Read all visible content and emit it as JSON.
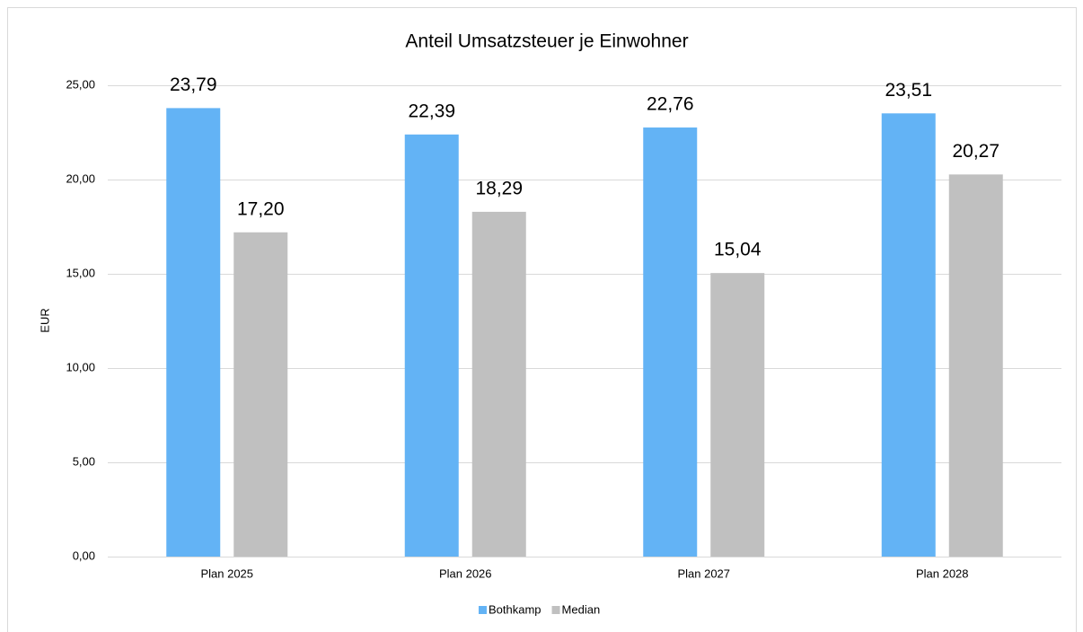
{
  "chart_data": {
    "type": "bar",
    "title": "Anteil Umsatzsteuer je Einwohner",
    "y_label": "EUR",
    "categories": [
      "Plan 2025",
      "Plan 2026",
      "Plan 2027",
      "Plan 2028"
    ],
    "series": [
      {
        "name": "Bothkamp",
        "color": "#63b3f5",
        "values": [
          23.79,
          22.39,
          22.76,
          23.51
        ],
        "value_labels": [
          "23,79",
          "22,39",
          "22,76",
          "23,51"
        ]
      },
      {
        "name": "Median",
        "color": "#c0c0c0",
        "values": [
          17.2,
          18.29,
          15.04,
          20.27
        ],
        "value_labels": [
          "17,20",
          "18,29",
          "15,04",
          "20,27"
        ]
      }
    ],
    "ylim": [
      0,
      25
    ],
    "yticks": [
      {
        "value": 0,
        "label": "0,00"
      },
      {
        "value": 5,
        "label": "5,00"
      },
      {
        "value": 10,
        "label": "10,00"
      },
      {
        "value": 15,
        "label": "15,00"
      },
      {
        "value": 20,
        "label": "20,00"
      },
      {
        "value": 25,
        "label": "25,00"
      }
    ],
    "grid": true,
    "legend": "bottom"
  }
}
